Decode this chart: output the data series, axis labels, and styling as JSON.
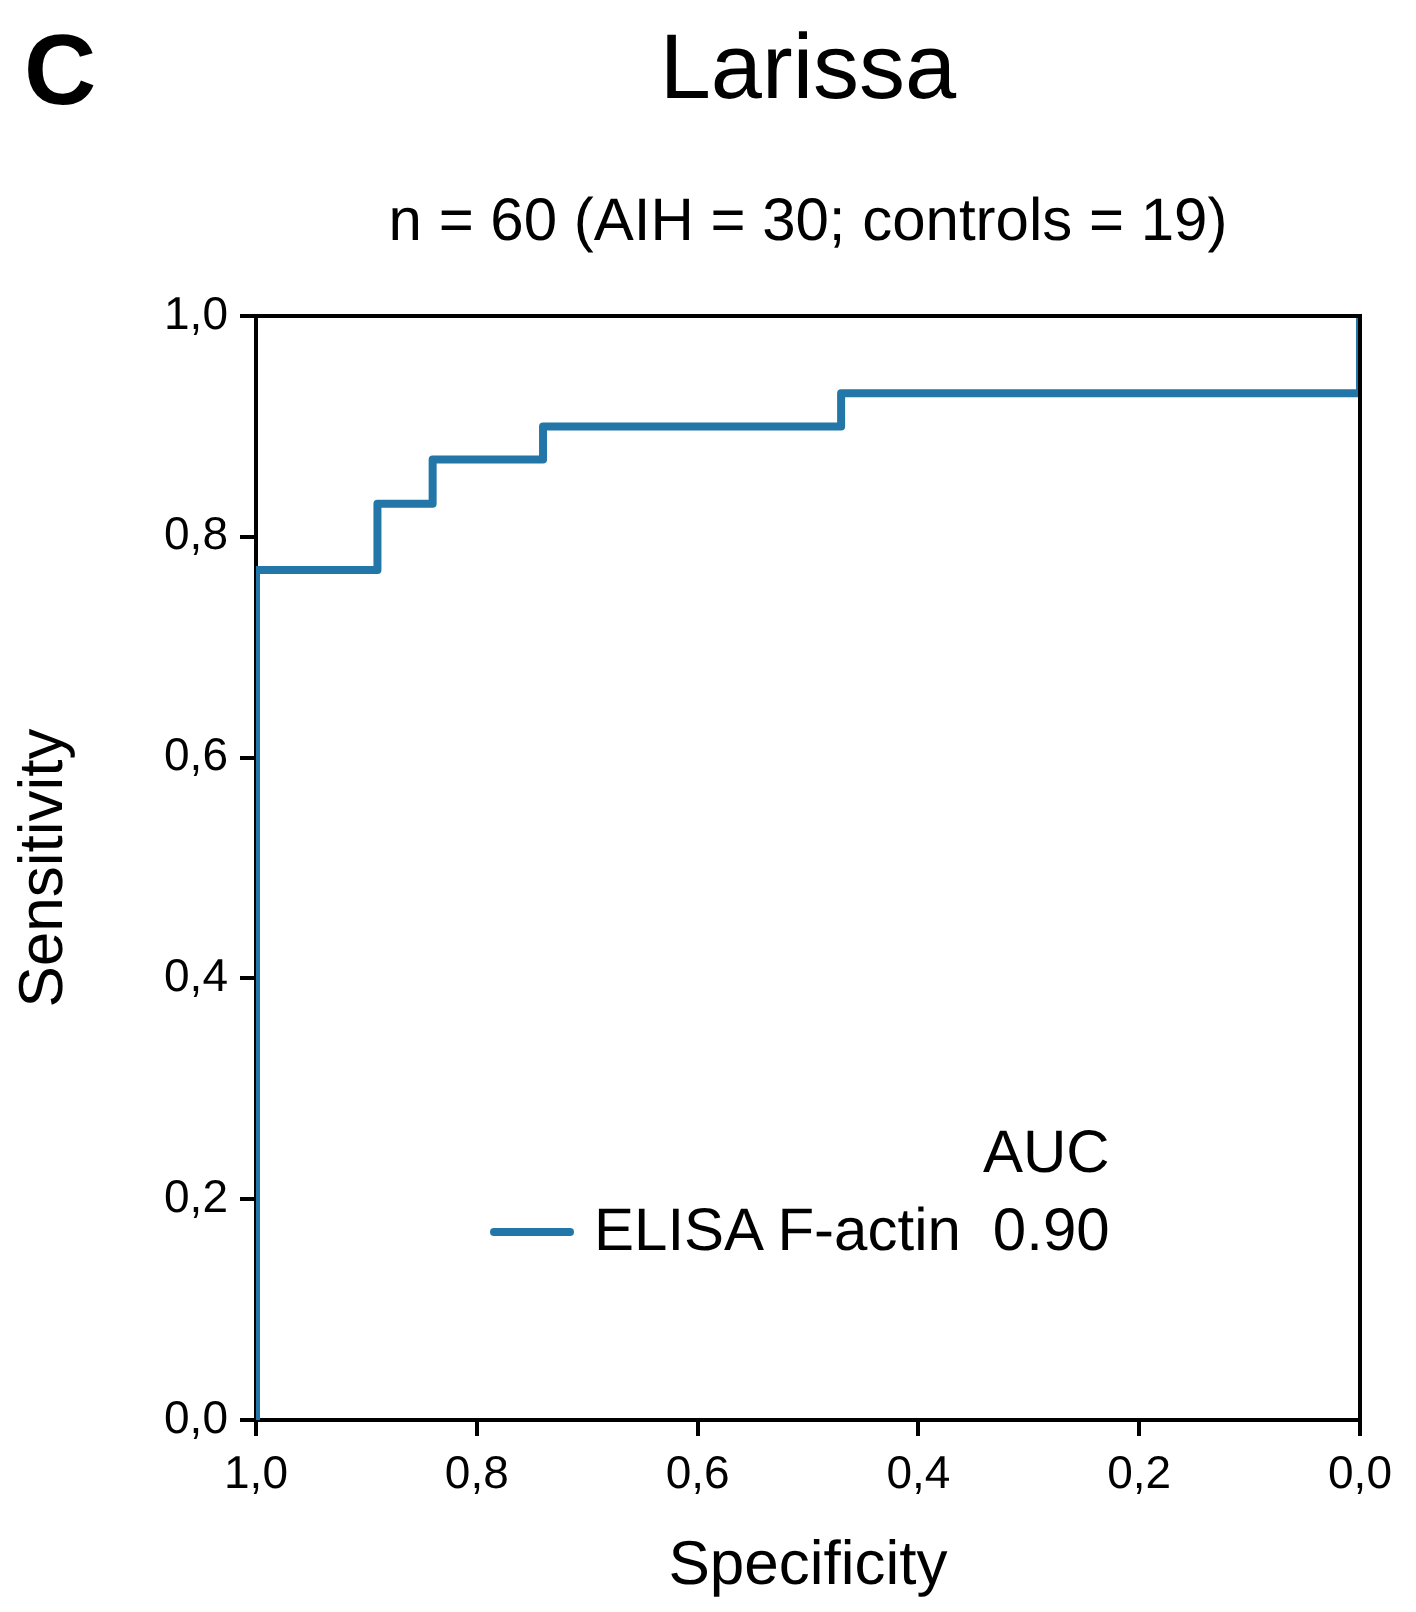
{
  "chart_data": {
    "type": "line",
    "title": "Larissa",
    "subtitle": "n = 60 (AIH = 30; controls = 19)",
    "xlabel": "Specificity",
    "ylabel": "Sensitivity",
    "legend_title": "AUC",
    "legend": "bottom",
    "grid": false,
    "marker": "none",
    "line_style": "solid",
    "annotations": [
      "C",
      "0.90"
    ],
    "xlim": [
      1,
      0
    ],
    "ylim": [
      0,
      1
    ],
    "xticks": [
      {
        "value": 1,
        "label": "1,0"
      },
      {
        "value": 0.8,
        "label": "0,8"
      },
      {
        "value": 0.6,
        "label": "0,6"
      },
      {
        "value": 0.4,
        "label": "0,4"
      },
      {
        "value": 0.2,
        "label": "0,2"
      },
      {
        "value": 0,
        "label": "0,0"
      }
    ],
    "yticks": [
      {
        "value": 0,
        "label": "0,0"
      },
      {
        "value": 0.2,
        "label": "0,2"
      },
      {
        "value": 0.4,
        "label": "0,4"
      },
      {
        "value": 0.6,
        "label": "0,6"
      },
      {
        "value": 0.8,
        "label": "0,8"
      },
      {
        "value": 1,
        "label": "1,0"
      }
    ],
    "series": [
      {
        "name": "ELISA F-actin",
        "color": "#2277a8",
        "x": [
          1,
          1,
          0.89,
          0.89,
          0.84,
          0.84,
          0.74,
          0.74,
          0.47,
          0.47,
          0,
          0
        ],
        "values": [
          0,
          0.77,
          0.77,
          0.83,
          0.83,
          0.87,
          0.87,
          0.9,
          0.9,
          0.93,
          0.93,
          1
        ]
      }
    ]
  }
}
